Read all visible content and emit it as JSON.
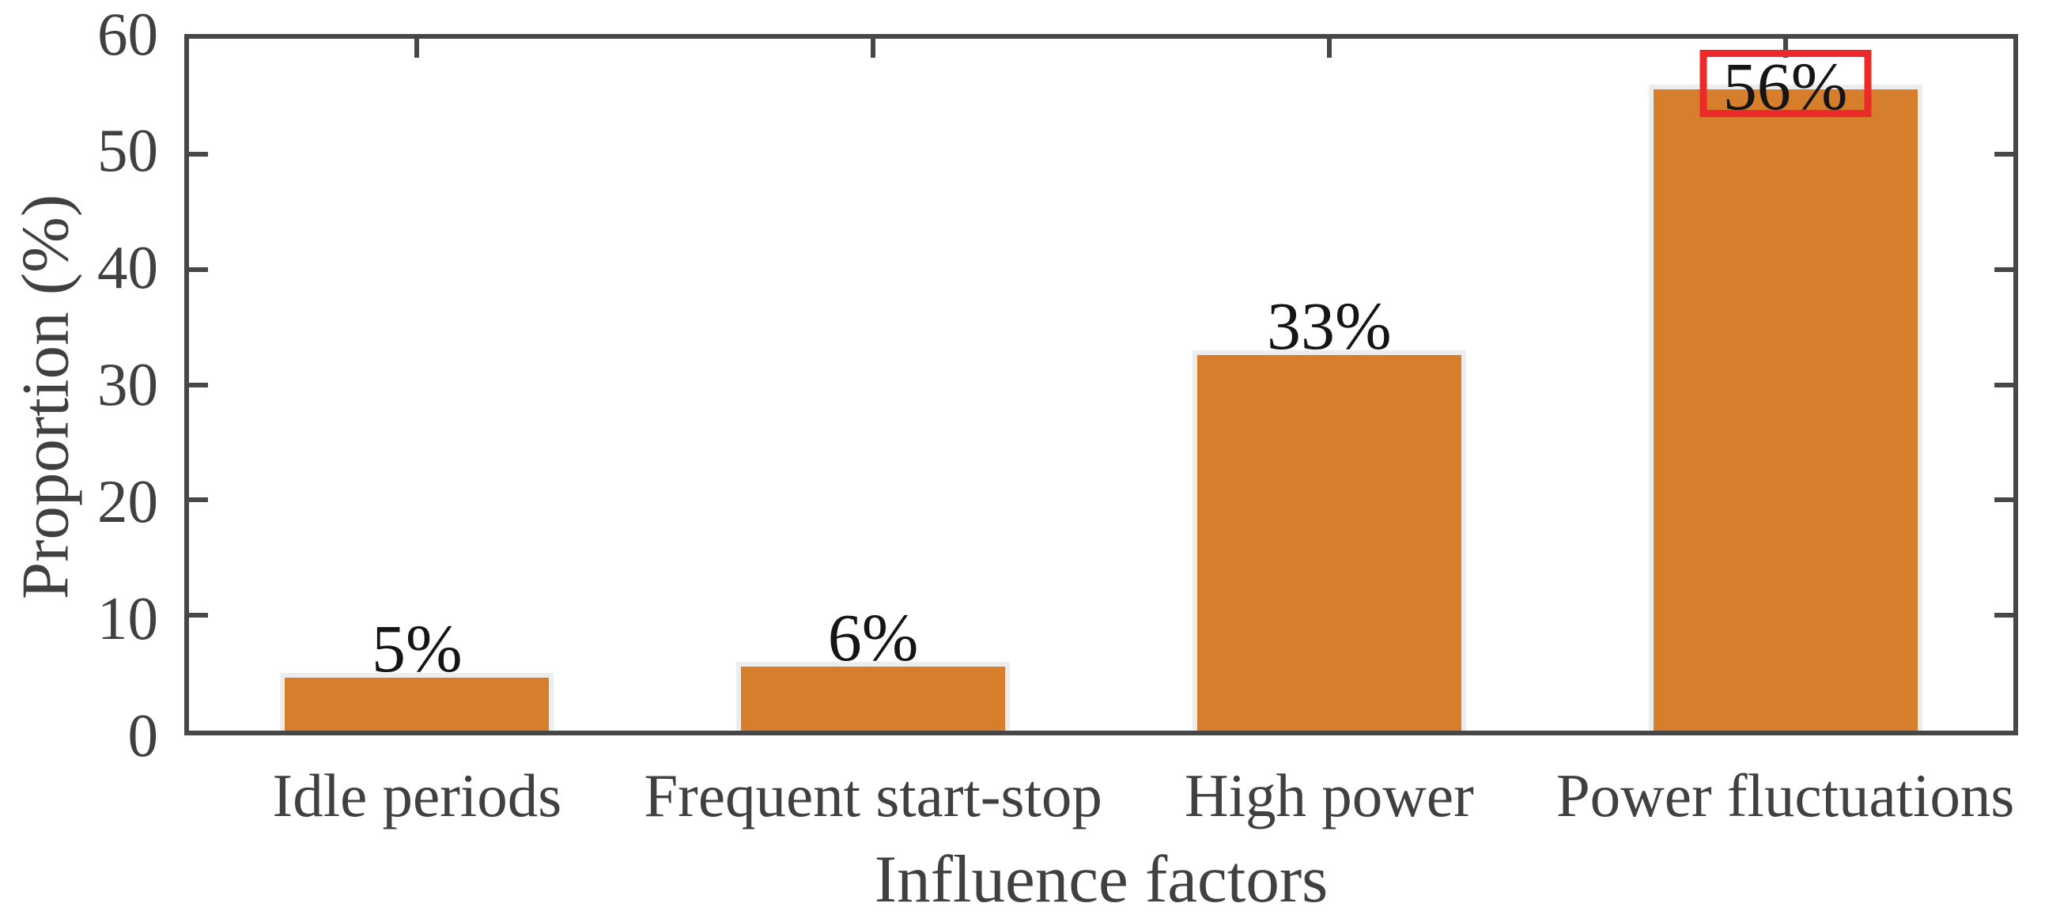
{
  "chart_data": {
    "type": "bar",
    "title": "",
    "categories": [
      "Idle periods",
      "Frequent start-stop",
      "High power",
      "Power fluctuations"
    ],
    "values": [
      5,
      6,
      33,
      56
    ],
    "data_labels": [
      "5%",
      "6%",
      "33%",
      "56%"
    ],
    "xlabel": "Influence factors",
    "ylabel": "Proportion (%)",
    "ylim": [
      0,
      60
    ],
    "yticks": [
      0,
      10,
      20,
      30,
      40,
      50,
      60
    ],
    "grid": false,
    "legend": null,
    "bar_width_fraction": 0.6,
    "highlight": {
      "index": 3,
      "style": "red-outline-box"
    },
    "colors": {
      "bar_fill": "#D77E2C",
      "bar_edge": "#EDEDED",
      "axis": "#474747",
      "axis_text": "#404040",
      "data_label_text": "#151515",
      "highlight_box": "#EC2A2A",
      "background": "#FFFFFF"
    }
  }
}
